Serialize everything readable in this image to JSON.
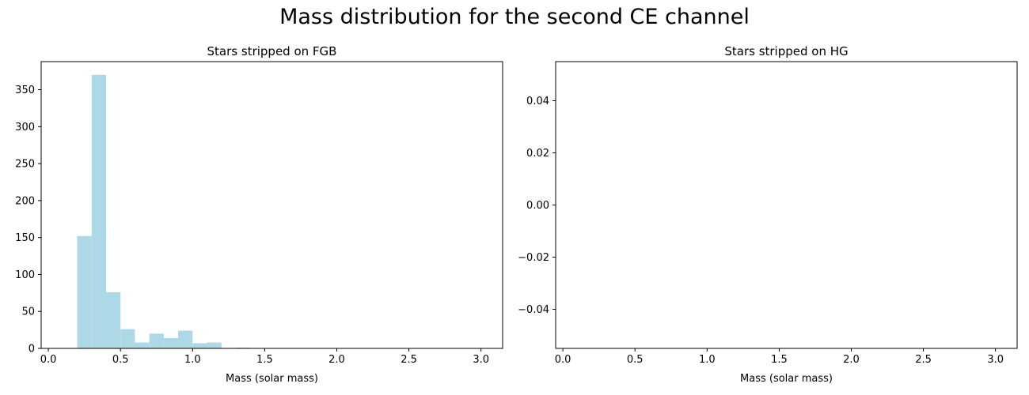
{
  "figure": {
    "title": "Mass distribution for the second CE channel"
  },
  "chart_data": [
    {
      "type": "bar",
      "title": "Stars stripped on FGB",
      "xlabel": "Mass (solar mass)",
      "ylabel": "",
      "xlim": [
        -0.05,
        3.15
      ],
      "ylim": [
        0,
        388
      ],
      "xticks": [
        {
          "value": 0.0,
          "label": "0.0"
        },
        {
          "value": 0.5,
          "label": "0.5"
        },
        {
          "value": 1.0,
          "label": "1.0"
        },
        {
          "value": 1.5,
          "label": "1.5"
        },
        {
          "value": 2.0,
          "label": "2.0"
        },
        {
          "value": 2.5,
          "label": "2.5"
        },
        {
          "value": 3.0,
          "label": "3.0"
        }
      ],
      "yticks": [
        {
          "value": 0,
          "label": "0"
        },
        {
          "value": 50,
          "label": "50"
        },
        {
          "value": 100,
          "label": "100"
        },
        {
          "value": 150,
          "label": "150"
        },
        {
          "value": 200,
          "label": "200"
        },
        {
          "value": 250,
          "label": "250"
        },
        {
          "value": 300,
          "label": "300"
        },
        {
          "value": 350,
          "label": "350"
        }
      ],
      "bar_color": "#add8e6",
      "bin_width": 0.1,
      "bins": [
        {
          "x0": 0.2,
          "x1": 0.3,
          "count": 152
        },
        {
          "x0": 0.3,
          "x1": 0.4,
          "count": 370
        },
        {
          "x0": 0.4,
          "x1": 0.5,
          "count": 76
        },
        {
          "x0": 0.5,
          "x1": 0.6,
          "count": 26
        },
        {
          "x0": 0.6,
          "x1": 0.7,
          "count": 8
        },
        {
          "x0": 0.7,
          "x1": 0.8,
          "count": 20
        },
        {
          "x0": 0.8,
          "x1": 0.9,
          "count": 14
        },
        {
          "x0": 0.9,
          "x1": 1.0,
          "count": 24
        },
        {
          "x0": 1.0,
          "x1": 1.1,
          "count": 7
        },
        {
          "x0": 1.1,
          "x1": 1.2,
          "count": 8
        },
        {
          "x0": 1.3,
          "x1": 1.4,
          "count": 1
        }
      ]
    },
    {
      "type": "bar",
      "title": "Stars stripped on HG",
      "xlabel": "Mass (solar mass)",
      "ylabel": "",
      "xlim": [
        -0.05,
        3.15
      ],
      "ylim": [
        -0.055,
        0.055
      ],
      "xticks": [
        {
          "value": 0.0,
          "label": "0.0"
        },
        {
          "value": 0.5,
          "label": "0.5"
        },
        {
          "value": 1.0,
          "label": "1.0"
        },
        {
          "value": 1.5,
          "label": "1.5"
        },
        {
          "value": 2.0,
          "label": "2.0"
        },
        {
          "value": 2.5,
          "label": "2.5"
        },
        {
          "value": 3.0,
          "label": "3.0"
        }
      ],
      "yticks": [
        {
          "value": -0.04,
          "label": "−0.04"
        },
        {
          "value": -0.02,
          "label": "−0.02"
        },
        {
          "value": 0.0,
          "label": "0.00"
        },
        {
          "value": 0.02,
          "label": "0.02"
        },
        {
          "value": 0.04,
          "label": "0.04"
        }
      ],
      "bar_color": "#add8e6",
      "bin_width": 0.1,
      "bins": []
    }
  ]
}
